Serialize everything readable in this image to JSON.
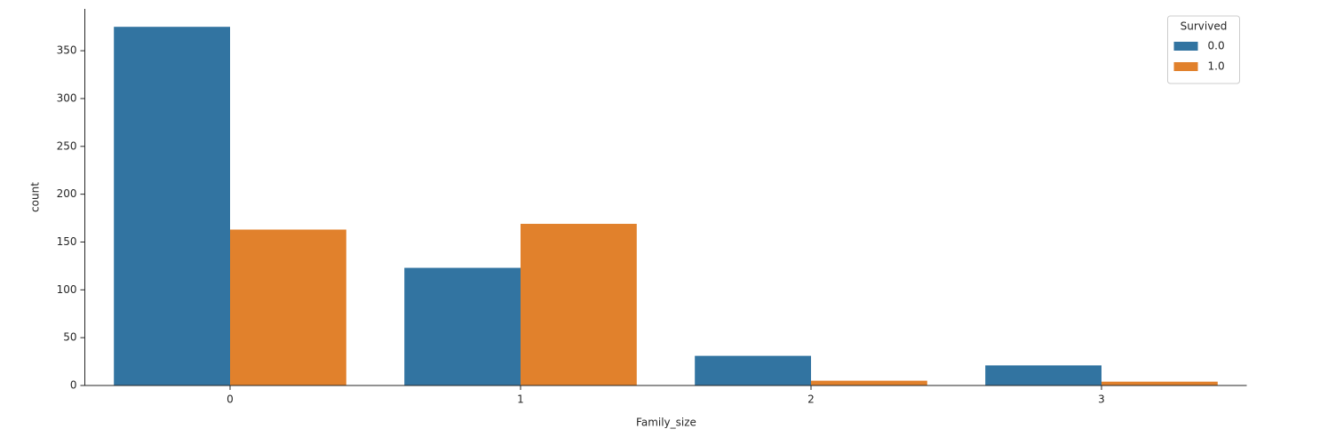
{
  "chart_data": {
    "type": "bar",
    "x_label": "Family_size",
    "y_label": "count",
    "categories": [
      "0",
      "1",
      "2",
      "3"
    ],
    "series": [
      {
        "name": "0.0",
        "color": "#3274a1",
        "values": [
          375,
          123,
          31,
          21
        ]
      },
      {
        "name": "1.0",
        "color": "#e1812c",
        "values": [
          163,
          169,
          5,
          4
        ]
      }
    ],
    "legend_title": "Survived",
    "legend": "upper right",
    "ylim": [
      0,
      393.75
    ],
    "yticks": [
      0,
      50,
      100,
      150,
      200,
      250,
      300,
      350
    ],
    "grid": false
  }
}
